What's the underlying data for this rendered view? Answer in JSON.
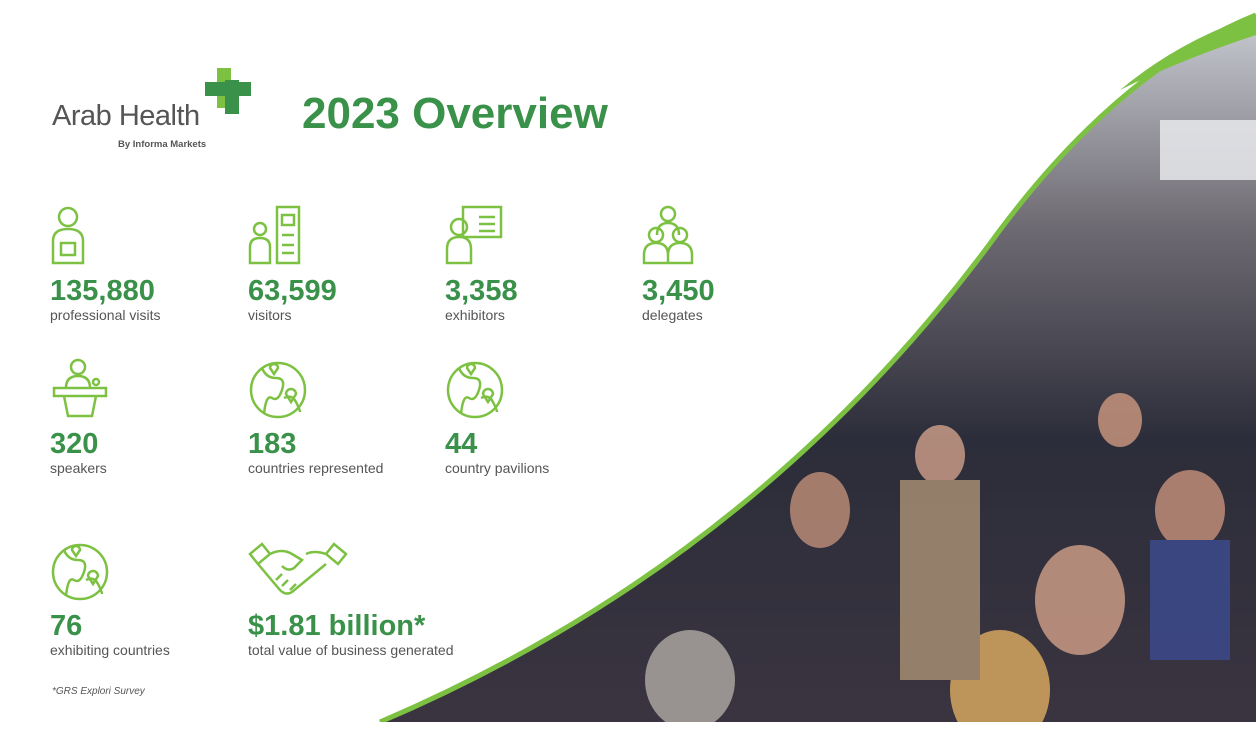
{
  "logo": {
    "name": "Arab Health",
    "tagline": "By Informa Markets"
  },
  "title": "2023 Overview",
  "stats": [
    {
      "value": "135,880",
      "label": "professional visits",
      "icon": "badge-person-icon"
    },
    {
      "value": "63,599",
      "label": "visitors",
      "icon": "visitor-kiosk-icon"
    },
    {
      "value": "3,358",
      "label": "exhibitors",
      "icon": "presenter-board-icon"
    },
    {
      "value": "3,450",
      "label": "delegates",
      "icon": "group-icon"
    },
    {
      "value": "320",
      "label": "speakers",
      "icon": "speaker-podium-icon"
    },
    {
      "value": "183",
      "label": "countries represented",
      "icon": "globe-pin-icon"
    },
    {
      "value": "44",
      "label": "country pavilions",
      "icon": "globe-pin-icon"
    },
    {
      "value": "76",
      "label": "exhibiting countries",
      "icon": "globe-pin-icon"
    },
    {
      "value": "$1.81 billion*",
      "label": "total value of business generated",
      "icon": "handshake-icon"
    }
  ],
  "footnote": "*GRS Explori Survey",
  "colors": {
    "green": "#3a9149",
    "light_green": "#7dc142"
  }
}
